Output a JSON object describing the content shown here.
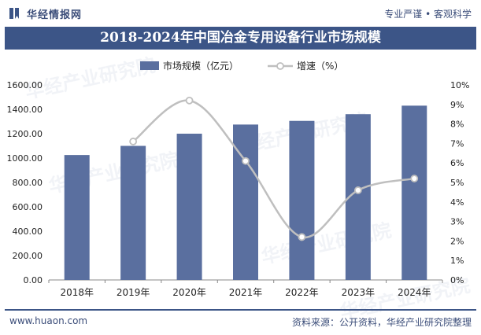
{
  "header": {
    "brand": "华经情报网",
    "slogan": "专业严谨 • 客观科学",
    "icon": "bookmark-logo-icon"
  },
  "watermark": "华经产业研究院",
  "footer": {
    "website": "www.huaon.com",
    "source": "资料来源：公开资料，华经产业研究院整理"
  },
  "colors": {
    "bar": "#5a6f9f",
    "line": "#bfbfbf",
    "title_bg": "#3c5587",
    "text": "#3b4d79"
  },
  "chart_data": {
    "type": "bar",
    "title": "2018-2024年中国冶金专用设备行业市场规模",
    "categories": [
      "2018年",
      "2019年",
      "2020年",
      "2021年",
      "2022年",
      "2023年",
      "2024年"
    ],
    "series": [
      {
        "name": "市场规模（亿元）",
        "type": "bar",
        "axis": "left",
        "values": [
          1025,
          1100,
          1200,
          1275,
          1305,
          1360,
          1430
        ]
      },
      {
        "name": "增速（%）",
        "type": "line",
        "axis": "right",
        "values": [
          null,
          7.1,
          9.2,
          6.1,
          2.2,
          4.6,
          5.2
        ]
      }
    ],
    "y_left": {
      "min": 0,
      "max": 1600,
      "ticks": [
        "0.00",
        "200.00",
        "400.00",
        "600.00",
        "800.00",
        "1000.00",
        "1200.00",
        "1400.00",
        "1600.00"
      ]
    },
    "y_right": {
      "min": 0,
      "max": 10,
      "ticks": [
        "0%",
        "1%",
        "2%",
        "3%",
        "4%",
        "5%",
        "6%",
        "7%",
        "8%",
        "9%",
        "10%"
      ]
    },
    "legend_position": "top"
  }
}
